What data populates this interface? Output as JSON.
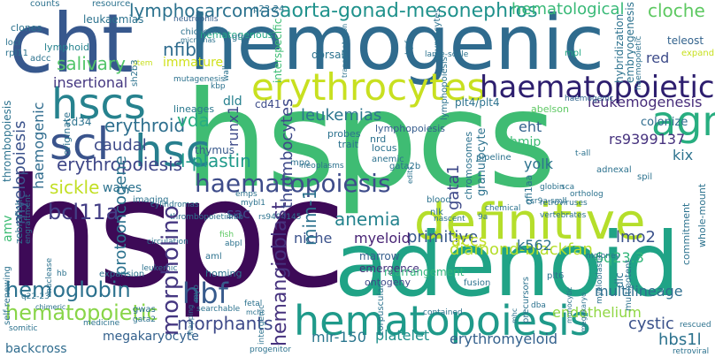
{
  "words": {
    "hspcs": "hspcs",
    "hspc": "hspc",
    "hemogenic": "hemogenic",
    "cht": "cht",
    "adenoid": "adenoid",
    "definitive": "definitive",
    "hsc": "hsc",
    "hscs": "hscs",
    "scl": "scl",
    "agm": "agm",
    "erythrocytes": "erythrocytes",
    "haematopoietic": "haematopoietic",
    "hematopoiesis": "hematopoiesis",
    "haematopoiesis": "haematopoiesis",
    "hbf": "hbf",
    "hemoglobin": "hemoglobin",
    "hematopoietic": "hematopoietic",
    "aorta_gonad_mesonephros": "aorta-gonad-mesonephros",
    "lymphosarcomas": "lymphosarcomas",
    "hematological": "hematological",
    "cloche": "cloche",
    "erythroid": "erythroid",
    "erythropoiesis": "erythropoiesis",
    "caudal": "caudal",
    "bcl11a": "bcl11a",
    "lmo2": "lmo2",
    "leukemogenesis": "leukemogenesis",
    "rs9399137": "rs9399137",
    "morphants": "morphants",
    "hbs1l": "hbs1l",
    "endothelium": "endothelium",
    "primitive": "primitive",
    "diamond_blackfan": "diamond-blackfan",
    "myeloid": "myeloid",
    "anemia": "anemia",
    "cystic": "cystic",
    "l_plastin": "l-plastin",
    "mim_1": "mim-1",
    "gata1": "gata1",
    "vda": "vda",
    "nfib": "nfib",
    "salivary": "salivary",
    "insertional": "insertional",
    "sickle": "sickle",
    "hematogenous": "hematogenous",
    "leukemias": "leukemias",
    "eht": "eht",
    "accs": "accs",
    "k562": "k562",
    "kix": "kix",
    "hmip": "hmip",
    "yolk": "yolk",
    "marrow": "marrow",
    "emergence": "emergence",
    "ontogeny": "ontogeny",
    "niche": "niche",
    "mir_150": "mir-150",
    "platelet": "platelet",
    "erythromyeloid": "erythromyeloid",
    "multilineage": "multilineage",
    "megakaryocyte": "megakaryocyte",
    "backcross": "backcross",
    "hemangioblast": "hemangioblast",
    "morpholino": "morpholino",
    "protooncogene": "protooncogene",
    "myelopoiesis": "myelopoiesis",
    "haemogenic": "haemogenic",
    "thrombocytes": "thrombocytes",
    "runx1": "runx1",
    "q6q23_3": "6q23.3",
    "amv": "amv",
    "sac": "sac",
    "dld": "dld",
    "cd41": "cd41",
    "red": "red",
    "immature": "immature",
    "lineages": "lineages",
    "thymus": "thymus",
    "rearrangement": "rearrangement",
    "leukaemias": "leukaemias",
    "thrombopoiesis": "thrombopoiesis",
    "granulocyte": "granulocyte",
    "lymphopoiesis": "lymphopoiesis",
    "lymphoid": "lymphoid",
    "plt4_plt4": "plt4/plt4",
    "colonize": "colonize",
    "teleost": "teleost",
    "haemopoietic": "haemopoietic",
    "haemogenic_small": "haemogenic",
    "abelson": "abelson",
    "hybridization": "hybridization",
    "embryogenesis": "embryogenesis",
    "chromosomes": "chromosomes",
    "thymocytes": "thymocytes",
    "counts": "counts",
    "resource": "resource",
    "neutrophils": "neutrophils",
    "p23_24": "p23-24",
    "clones": "clones",
    "loci": "loci",
    "rpl11": "rpl11",
    "adcc": "adcc",
    "chicken": "chicken",
    "micrornas": "micrornas",
    "sh2b3": "sh2b3",
    "gfp": "gfp",
    "interspecific": "interspecific",
    "dorsal": "dorsal",
    "transplantation": "transplantation",
    "hpf": "hpf",
    "large_scale": "large-scale",
    "mpl": "mpl",
    "expand": "expand",
    "stem": "stem",
    "mutagenesis": "mutagenesis",
    "kbp": "kbp",
    "wall": "wall",
    "cd34": "cd34",
    "waves": "waves",
    "originate": "originate",
    "imaging": "imaging",
    "zebrafish": "zebrafish",
    "engraftment": "engraftment",
    "cylindromas": "cylindromas",
    "emps": "emps",
    "mybl1": "mybl1",
    "hbb": "hbb",
    "fish": "fish",
    "abpl": "abpl",
    "probes": "probes",
    "trait": "trait",
    "mpo": "mpo",
    "neoplasms": "neoplasms",
    "nrd": "nrd",
    "locus": "locus",
    "anemic": "anemic",
    "gata2b": "gata2b",
    "edits": "edits",
    "nlk": "nlk",
    "nascent": "nascent",
    "blood": "blood",
    "rs9494145": "rs9494145",
    "thrombopoietin": "thrombopoietin",
    "circulation": "circulation",
    "chemical": "chemical",
    "q9a": "9a",
    "vertebrates": "vertebrates",
    "retroviruses": "retroviruses",
    "orthologs": "ortholog",
    "ccr9a": "ccr9a",
    "smll": "smll",
    "pipeline": "pipeline",
    "gf11aa": "gfi1aa",
    "globin": "globin",
    "sca": "sca",
    "adnexal": "adnexal",
    "t_all": "t-all",
    "spi": "spil",
    "whole_mount": "whole-mount",
    "commitment": "commitment",
    "moloney": "moloney",
    "dlc": "dlc",
    "multipotent": "multipotent",
    "myeloblastic": "myeloblastic",
    "plt6": "plt6",
    "fusion": "fusion",
    "dba": "dba",
    "precursors": "precursors",
    "contained": "contained",
    "leukemic": "leukemic",
    "aml": "aml",
    "homing": "homing",
    "expansion": "expansion",
    "nuclease": "nuclease",
    "hb": "hb",
    "self_renewing": "self-renewing",
    "q22_23": "q22-23",
    "chimeric": "chimeric",
    "somitic": "somitic",
    "medicine": "medicine",
    "gwas": "gwas",
    "gata2": "gata2",
    "mapping": "mapping",
    "myb": "myb",
    "searchable": "searchable",
    "fetal": "fetal",
    "mchc": "mchc",
    "intergenic": "intergenic",
    "corpuscular": "corpuscular",
    "progenitor": "progenitor",
    "retroviral": "retroviral",
    "rescued": "rescued",
    "mhc": "mhc",
    "monocytic": "monocytic",
    "megakaryo": "megakaryo"
  }
}
